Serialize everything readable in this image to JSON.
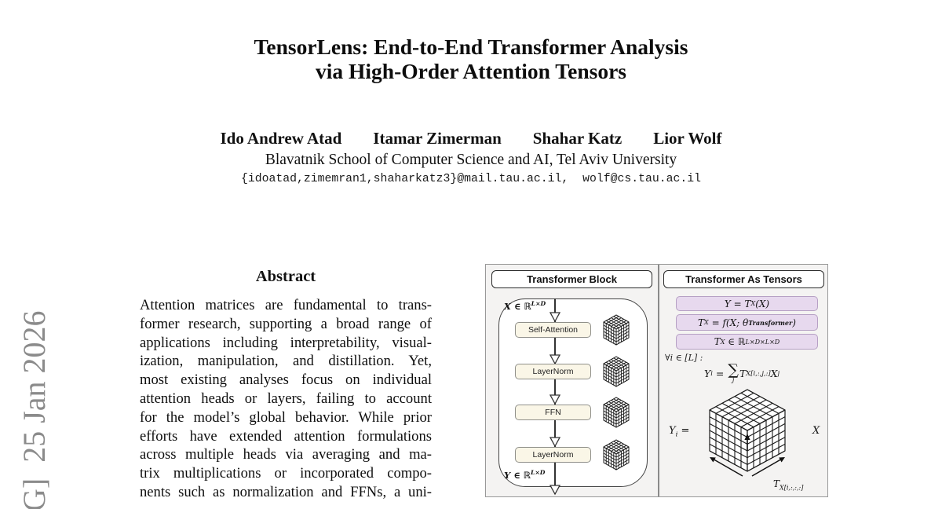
{
  "page": {
    "title_line1": "TensorLens: End-to-End Transformer Analysis",
    "title_line2": "via High-Order Attention Tensors",
    "authors": [
      "Ido Andrew Atad",
      "Itamar Zimerman",
      "Shahar Katz",
      "Lior Wolf"
    ],
    "affiliation": "Blavatnik School of Computer Science and AI, Tel Aviv University",
    "emails": "{idoatad,zimemran1,shaharkatz3}@mail.tau.ac.il,  wolf@cs.tau.ac.il"
  },
  "watermark": {
    "text": "G]  25 Jan 2026"
  },
  "abstract": {
    "heading": "Abstract",
    "lines": [
      "Attention matrices are fundamental to trans-",
      "former research, supporting a broad range of",
      "applications including interpretability, visual-",
      "ization, manipulation, and distillation.  Yet,",
      "most existing analyses focus on individual",
      "attention heads or layers, failing to account",
      "for the model’s global behavior.  While prior",
      "efforts have extended attention formulations",
      "across multiple heads via averaging and ma-",
      "trix multiplications or incorporated compo-",
      "nents such as normalization and FFNs, a uni-"
    ]
  },
  "figure": {
    "left": {
      "header": "Transformer Block",
      "input_label": {
        "base": "X ∈ ℝ",
        "sup": "L×D"
      },
      "blocks": [
        "Self-Attention",
        "LayerNorm",
        "FFN",
        "LayerNorm"
      ],
      "output_label": {
        "base": "Y ∈ ℝ",
        "sup": "L×D"
      }
    },
    "right": {
      "header": "Transformer As Tensors",
      "formula1": {
        "p1": "Y = T",
        "s1": "X",
        "p2": "(X)"
      },
      "formula2": {
        "p1": "T",
        "s1": "X",
        "p2": " = f(X; θ",
        "s2": "Transformer",
        "p3": ")"
      },
      "formula3": {
        "p1": "T",
        "s1": "X",
        "p2": " ∈ ℝ",
        "sup": "L×D×L×D"
      },
      "forall": "∀i ∈ [L] :",
      "sum": {
        "p1": "Y",
        "s1": "i",
        "p2": " = ",
        "sigma": "∑",
        "under": "j",
        "p3": "T",
        "s3": "X[i,:,j,:]",
        "p4": "X",
        "s4": "j"
      },
      "cube_left": {
        "p1": "Y",
        "s1": "i",
        "p2": " ="
      },
      "cube_right": "X",
      "cube_bottom": {
        "p1": "T",
        "s1": "X[i,:,:,:]"
      }
    },
    "colors": {
      "panel_bg": "#f4f3f2",
      "block_fill": "#faf6e7",
      "formula_fill": "#e7d9ee",
      "formula_border": "#b6a0c4",
      "watermark_gray": "#8b8b8b"
    }
  }
}
